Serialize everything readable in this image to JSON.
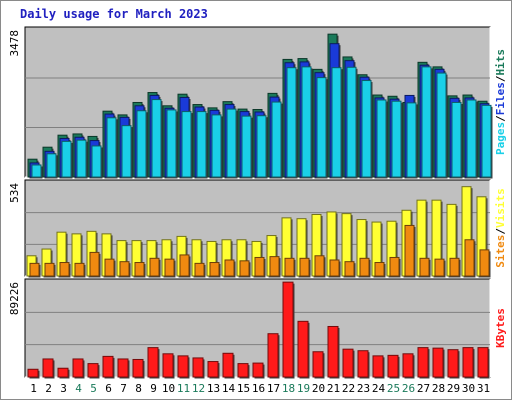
{
  "title": "Daily usage for March 2023",
  "colors": {
    "panel_bg": "#c0c0c0",
    "hits": "#1a7a5a",
    "files": "#1a3ad8",
    "pages": "#1ad0e8",
    "visits": "#ffff33",
    "sites": "#f08a10",
    "kbytes": "#ff1a1a",
    "weekend_label": "#1a7a5a",
    "weekday_label": "#000000"
  },
  "chart_data": [
    {
      "type": "bar",
      "panel": "hits-files-pages",
      "ymax_label": "3478",
      "ylim": [
        0,
        3478
      ],
      "legend": [
        "Pages",
        "/",
        "Files",
        "/",
        "Hits"
      ],
      "categories": [
        "1",
        "2",
        "3",
        "4",
        "5",
        "6",
        "7",
        "8",
        "9",
        "10",
        "11",
        "12",
        "13",
        "14",
        "15",
        "16",
        "17",
        "18",
        "19",
        "20",
        "21",
        "22",
        "23",
        "24",
        "25",
        "26",
        "27",
        "28",
        "29",
        "30",
        "31"
      ],
      "series": [
        {
          "name": "Hits",
          "values": [
            430,
            720,
            1010,
            1040,
            980,
            1590,
            1500,
            1800,
            2040,
            1720,
            2000,
            1750,
            1670,
            1820,
            1640,
            1630,
            2020,
            2840,
            2860,
            2600,
            3450,
            2900,
            2470,
            1980,
            1950,
            1800,
            2770,
            2660,
            1960,
            1980,
            1830
          ]
        },
        {
          "name": "Files",
          "values": [
            340,
            620,
            930,
            960,
            880,
            1520,
            1440,
            1720,
            1970,
            1660,
            1920,
            1690,
            1610,
            1750,
            1580,
            1570,
            1930,
            2760,
            2780,
            2520,
            3220,
            2810,
            2410,
            1910,
            1880,
            1970,
            2700,
            2600,
            1900,
            1910,
            1770
          ]
        },
        {
          "name": "Pages",
          "values": [
            290,
            560,
            860,
            890,
            750,
            1430,
            1240,
            1600,
            1870,
            1620,
            1580,
            1580,
            1500,
            1640,
            1470,
            1480,
            1810,
            2640,
            2660,
            2400,
            2640,
            2650,
            2330,
            1860,
            1830,
            1790,
            2660,
            2510,
            1800,
            1860,
            1730
          ]
        }
      ]
    },
    {
      "type": "bar",
      "panel": "visits-sites",
      "ymax_label": "534",
      "ylim": [
        0,
        534
      ],
      "legend": [
        "Sites",
        "/",
        "Visits"
      ],
      "categories": [
        "1",
        "2",
        "3",
        "4",
        "5",
        "6",
        "7",
        "8",
        "9",
        "10",
        "11",
        "12",
        "13",
        "14",
        "15",
        "16",
        "17",
        "18",
        "19",
        "20",
        "21",
        "22",
        "23",
        "24",
        "25",
        "26",
        "27",
        "28",
        "29",
        "30",
        "31"
      ],
      "series": [
        {
          "name": "Visits",
          "values": [
            120,
            160,
            260,
            250,
            265,
            250,
            210,
            210,
            210,
            215,
            235,
            215,
            205,
            215,
            215,
            205,
            240,
            345,
            340,
            365,
            380,
            370,
            335,
            320,
            325,
            390,
            450,
            450,
            425,
            530,
            470
          ]
        },
        {
          "name": "Sites",
          "values": [
            75,
            75,
            80,
            75,
            140,
            100,
            85,
            80,
            105,
            100,
            125,
            75,
            80,
            95,
            90,
            110,
            115,
            105,
            105,
            120,
            95,
            85,
            105,
            80,
            110,
            300,
            105,
            100,
            105,
            215,
            155
          ]
        }
      ]
    },
    {
      "type": "bar",
      "panel": "kbytes",
      "ymax_label": "89226",
      "ylim": [
        0,
        89226
      ],
      "legend": [
        "KBytes"
      ],
      "categories": [
        "1",
        "2",
        "3",
        "4",
        "5",
        "6",
        "7",
        "8",
        "9",
        "10",
        "11",
        "12",
        "13",
        "14",
        "15",
        "16",
        "17",
        "18",
        "19",
        "20",
        "21",
        "22",
        "23",
        "24",
        "25",
        "26",
        "27",
        "28",
        "29",
        "30",
        "31"
      ],
      "series": [
        {
          "name": "KBytes",
          "values": [
            7500,
            17500,
            8500,
            17500,
            13000,
            20000,
            17500,
            17000,
            28500,
            22500,
            20500,
            18500,
            15000,
            23000,
            13000,
            13500,
            42000,
            92000,
            54000,
            24500,
            49000,
            27000,
            25500,
            20500,
            21000,
            22500,
            28500,
            28000,
            26500,
            28500,
            28500
          ]
        }
      ]
    }
  ],
  "weekend_days": [
    "4",
    "5",
    "11",
    "12",
    "18",
    "19",
    "25",
    "26"
  ]
}
